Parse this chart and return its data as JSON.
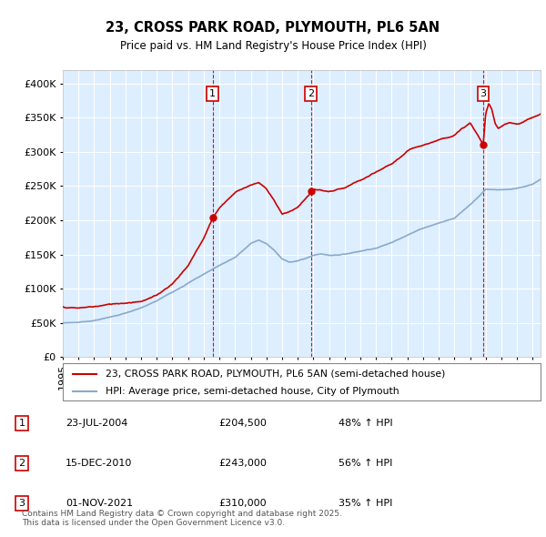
{
  "title": "23, CROSS PARK ROAD, PLYMOUTH, PL6 5AN",
  "subtitle": "Price paid vs. HM Land Registry's House Price Index (HPI)",
  "ylim": [
    0,
    420000
  ],
  "yticks": [
    0,
    50000,
    100000,
    150000,
    200000,
    250000,
    300000,
    350000,
    400000
  ],
  "ytick_labels": [
    "£0",
    "£50K",
    "£100K",
    "£150K",
    "£200K",
    "£250K",
    "£300K",
    "£350K",
    "£400K"
  ],
  "xlim_start": 1995.0,
  "xlim_end": 2025.5,
  "background_color": "#ffffff",
  "plot_bg_color": "#ddeeff",
  "grid_color": "#ffffff",
  "sale_dates": [
    2004.56,
    2010.84,
    2021.84
  ],
  "sale_prices": [
    204500,
    243000,
    310000
  ],
  "sale_labels": [
    "1",
    "2",
    "3"
  ],
  "sale_date_strings": [
    "23-JUL-2004",
    "15-DEC-2010",
    "01-NOV-2021"
  ],
  "sale_price_strings": [
    "£204,500",
    "£243,000",
    "£310,000"
  ],
  "sale_hpi_strings": [
    "48% ↑ HPI",
    "56% ↑ HPI",
    "35% ↑ HPI"
  ],
  "red_line_color": "#cc0000",
  "blue_line_color": "#88aacc",
  "dot_color": "#cc0000",
  "legend_label_red": "23, CROSS PARK ROAD, PLYMOUTH, PL6 5AN (semi-detached house)",
  "legend_label_blue": "HPI: Average price, semi-detached house, City of Plymouth",
  "footnote": "Contains HM Land Registry data © Crown copyright and database right 2025.\nThis data is licensed under the Open Government Licence v3.0.",
  "hpi_anchors_x": [
    1995,
    1996,
    1997,
    1998,
    1999,
    2000,
    2001,
    2002,
    2003,
    2004,
    2005,
    2006,
    2007,
    2007.5,
    2008,
    2008.5,
    2009,
    2009.5,
    2010,
    2010.5,
    2011,
    2011.5,
    2012,
    2013,
    2014,
    2015,
    2016,
    2017,
    2018,
    2019,
    2020,
    2021,
    2022,
    2023,
    2024,
    2025,
    2025.5
  ],
  "hpi_anchors_y": [
    48000,
    49000,
    52000,
    57000,
    63000,
    70000,
    80000,
    93000,
    107000,
    120000,
    133000,
    145000,
    165000,
    170000,
    165000,
    155000,
    142000,
    138000,
    140000,
    143000,
    148000,
    150000,
    148000,
    150000,
    155000,
    160000,
    168000,
    180000,
    190000,
    198000,
    205000,
    225000,
    248000,
    248000,
    250000,
    255000,
    262000
  ],
  "red_anchors_x": [
    1995,
    1996,
    1997,
    1998,
    1999,
    2000,
    2001,
    2002,
    2003,
    2004,
    2004.56,
    2005,
    2006,
    2007,
    2007.5,
    2008,
    2008.5,
    2009,
    2009.5,
    2010,
    2010.84,
    2011,
    2012,
    2013,
    2014,
    2015,
    2016,
    2017,
    2018,
    2019,
    2020,
    2021,
    2021.84,
    2022,
    2022.2,
    2022.4,
    2022.6,
    2022.8,
    2023,
    2023.5,
    2024,
    2024.5,
    2025,
    2025.5
  ],
  "red_anchors_y": [
    72000,
    70000,
    72000,
    75000,
    78000,
    82000,
    90000,
    108000,
    135000,
    175000,
    204500,
    220000,
    243000,
    255000,
    258000,
    248000,
    230000,
    212000,
    215000,
    222000,
    243000,
    248000,
    244000,
    248000,
    258000,
    268000,
    280000,
    298000,
    308000,
    316000,
    325000,
    342000,
    310000,
    355000,
    370000,
    360000,
    340000,
    332000,
    335000,
    342000,
    340000,
    345000,
    350000,
    355000
  ]
}
